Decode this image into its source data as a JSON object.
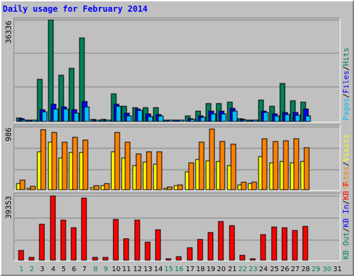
{
  "title": "Daily usage for February 2014",
  "colors": {
    "hits": "#00805c",
    "files": "#0000ff",
    "pages": "#00c0ff",
    "visits": "#ffff00",
    "sites": "#ff8000",
    "kbytes": "#ff0000",
    "weekday_label": "#000000",
    "weekend_label": "#00805c",
    "background": "#c0c0c0"
  },
  "chart_data": {
    "type": "bar",
    "days": [
      "1",
      "2",
      "3",
      "4",
      "5",
      "6",
      "7",
      "8",
      "9",
      "10",
      "11",
      "12",
      "13",
      "14",
      "15",
      "16",
      "17",
      "18",
      "19",
      "20",
      "21",
      "22",
      "23",
      "24",
      "25",
      "26",
      "27",
      "28",
      "29",
      "30",
      "31"
    ],
    "weekend_days": [
      "1",
      "2",
      "8",
      "9",
      "15",
      "16",
      "22",
      "23",
      "29",
      "30"
    ],
    "panels": [
      {
        "max_label": "36336",
        "ylim": [
          0,
          36336
        ],
        "axis_labels": [
          {
            "text": "Hits",
            "color": "#00805c"
          },
          {
            "text": "/",
            "color": "#000000"
          },
          {
            "text": "Files",
            "color": "#0000ff"
          },
          {
            "text": "/",
            "color": "#000000"
          },
          {
            "text": "Pages",
            "color": "#00c0ff"
          }
        ],
        "series": [
          {
            "name": "Hits",
            "color": "#00805c",
            "values": [
              1200,
              300,
              15000,
              36336,
              16500,
              19000,
              30000,
              800,
              700,
              10000,
              5500,
              5000,
              5000,
              5000,
              300,
              600,
              2000,
              3800,
              6500,
              6500,
              6800,
              1000,
              400,
              7700,
              5500,
              13500,
              7500,
              7000,
              0,
              0,
              0
            ]
          },
          {
            "name": "Files",
            "color": "#0000ff",
            "values": [
              900,
              200,
              4100,
              6300,
              5100,
              4100,
              7100,
              500,
              500,
              6200,
              3000,
              4500,
              2800,
              2500,
              200,
              400,
              1000,
              2000,
              3800,
              3800,
              4800,
              800,
              300,
              3800,
              2800,
              3300,
              3100,
              4500,
              0,
              0,
              0
            ]
          },
          {
            "name": "Pages",
            "color": "#00c0ff",
            "values": [
              500,
              100,
              3500,
              4400,
              4500,
              2900,
              5100,
              300,
              300,
              5500,
              2000,
              4000,
              1800,
              1900,
              100,
              300,
              700,
              1500,
              2600,
              2800,
              3600,
              500,
              200,
              3100,
              2000,
              2400,
              2300,
              2000,
              0,
              0,
              0
            ]
          }
        ]
      },
      {
        "max_label": "986",
        "ylim": [
          0,
          986
        ],
        "axis_labels": [
          {
            "text": "Visits",
            "color": "#ffff00"
          },
          {
            "text": "/",
            "color": "#000000"
          },
          {
            "text": "Sites",
            "color": "#ff8000"
          }
        ],
        "series": [
          {
            "name": "Visits",
            "color": "#ffff00",
            "values": [
              100,
              20,
              600,
              750,
              500,
              580,
              580,
              30,
              60,
              600,
              500,
              380,
              430,
              400,
              20,
              60,
              280,
              480,
              450,
              440,
              380,
              80,
              100,
              520,
              420,
              440,
              420,
              440,
              0,
              0,
              0
            ]
          },
          {
            "name": "Sites",
            "color": "#ff8000",
            "values": [
              150,
              50,
              940,
              900,
              750,
              820,
              780,
              60,
              100,
              900,
              750,
              560,
              600,
              600,
              40,
              80,
              420,
              750,
              950,
              760,
              720,
              120,
              120,
              800,
              760,
              770,
              800,
              660,
              0,
              0,
              0
            ]
          }
        ]
      },
      {
        "max_label": "39353",
        "ylim": [
          0,
          39353
        ],
        "axis_labels": [
          {
            "text": "KB F",
            "color": "#ff0000"
          },
          {
            "text": "/",
            "color": "#000000"
          },
          {
            "text": "KB In",
            "color": "#0000ff"
          },
          {
            "text": "/",
            "color": "#000000"
          },
          {
            "text": "KB Out",
            "color": "#00805c"
          }
        ],
        "series": [
          {
            "name": "KBytes",
            "color": "#ff0000",
            "values": [
              6000,
              1500,
              22000,
              39353,
              24500,
              20000,
              38000,
              1500,
              1500,
              25000,
              13300,
              24500,
              11000,
              18500,
              1000,
              2000,
              7700,
              12800,
              17000,
              23500,
              21000,
              3000,
              1000,
              15800,
              20300,
              20000,
              18000,
              20600,
              0,
              0,
              0
            ]
          }
        ]
      }
    ]
  }
}
